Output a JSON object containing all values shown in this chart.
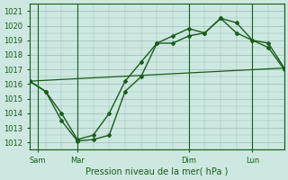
{
  "xlabel": "Pression niveau de la mer( hPa )",
  "bg_color": "#cce8e0",
  "grid_color": "#99bbbb",
  "line_color": "#1a5c1a",
  "ylim": [
    1011.5,
    1021.5
  ],
  "xlim": [
    0,
    96
  ],
  "x_ticks": [
    3,
    18,
    60,
    84
  ],
  "x_tick_labels": [
    "Sam",
    "Mar",
    "Dim",
    "Lun"
  ],
  "x_vlines": [
    3,
    18,
    60,
    84
  ],
  "series1_x": [
    0,
    6,
    12,
    18,
    24,
    30,
    36,
    42,
    48,
    54,
    60,
    66,
    72,
    78,
    84,
    90,
    96
  ],
  "series1_y": [
    1016.2,
    1015.5,
    1013.5,
    1012.1,
    1012.2,
    1012.5,
    1015.5,
    1016.5,
    1018.8,
    1018.8,
    1019.3,
    1019.5,
    1020.5,
    1020.2,
    1019.0,
    1018.5,
    1017.0
  ],
  "series2_x": [
    0,
    6,
    12,
    18,
    24,
    30,
    36,
    42,
    48,
    54,
    60,
    66,
    72,
    78,
    84,
    90,
    96
  ],
  "series2_y": [
    1016.2,
    1015.5,
    1014.0,
    1012.2,
    1012.5,
    1014.0,
    1016.2,
    1017.5,
    1018.8,
    1019.3,
    1019.8,
    1019.5,
    1020.5,
    1019.5,
    1019.0,
    1018.8,
    1017.1
  ],
  "series3_x": [
    0,
    96
  ],
  "series3_y": [
    1016.2,
    1017.1
  ],
  "ytick_start": 1012,
  "ytick_end": 1021,
  "ytick_step": 1
}
